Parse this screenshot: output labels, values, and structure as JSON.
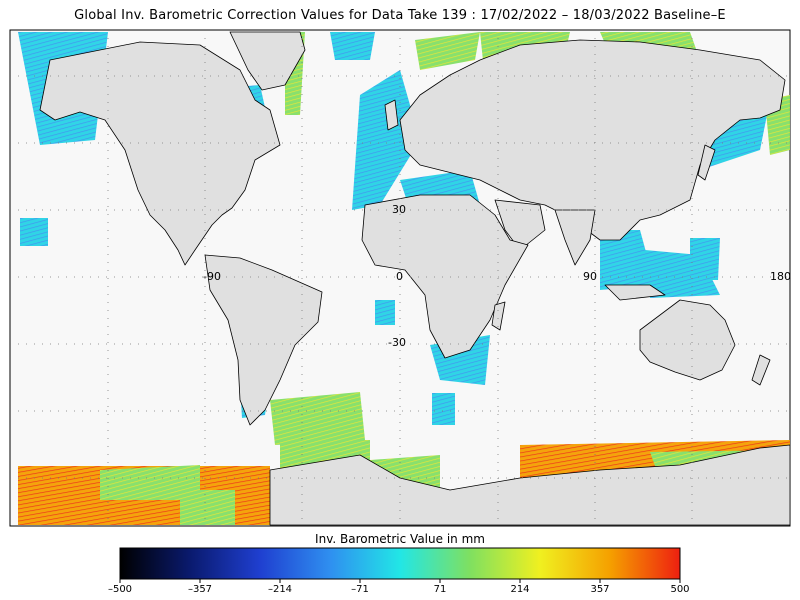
{
  "title": "Global Inv. Barometric Correction Values for Data Take 139 : 17/02/2022 – 18/03/2022 Baseline–E",
  "grid_labels": {
    "lon": [
      "-90",
      "0",
      "90",
      "180"
    ],
    "lat": [
      "30",
      "-30"
    ]
  },
  "colorbar": {
    "title": "Inv. Barometric Value in mm",
    "ticks": [
      "–500",
      "–357",
      "–214",
      "–71",
      "71",
      "214",
      "357",
      "500"
    ],
    "colors": [
      "#000000",
      "#0a1a6e",
      "#1f3fd0",
      "#2f8ff0",
      "#22e6e6",
      "#7fe060",
      "#f0f020",
      "#f5a000",
      "#ee2010"
    ]
  },
  "colors": {
    "land": "#e0e0e0",
    "ocean": "#f8f8f8",
    "coast": "#000000",
    "grid": "#7a7a7a"
  }
}
